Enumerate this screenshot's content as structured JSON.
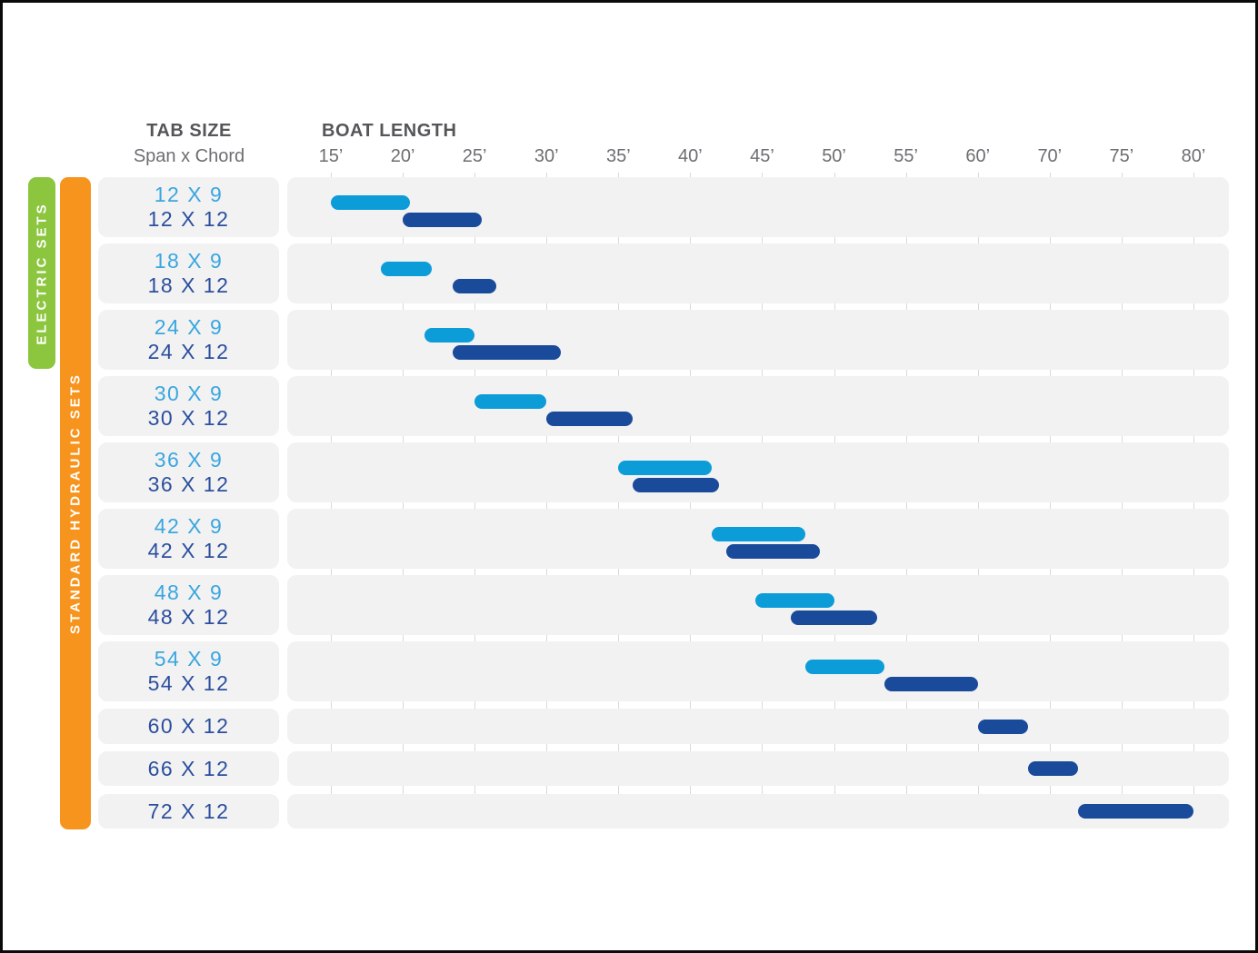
{
  "header": {
    "tab_size_title": "TAB SIZE",
    "tab_size_subtitle": "Span x Chord",
    "boat_length_title": "BOAT LENGTH"
  },
  "side_labels": {
    "electric": "ELECTRIC SETS",
    "hydraulic": "STANDARD HYDRAULIC SETS"
  },
  "colors": {
    "electric_green": "#8cc63f",
    "hydraulic_orange": "#f7941e",
    "bar_light_blue": "#0c9cd8",
    "bar_dark_blue": "#1a4b9b",
    "label_light_blue": "#3aa6df",
    "label_dark_blue": "#2b4f9d",
    "row_band_gray": "#f2f2f3",
    "gridline_gray": "#d9d9db",
    "axis_text_gray": "#6d6e71",
    "header_text_gray": "#545659"
  },
  "chart_data": {
    "type": "bar",
    "subtype": "horizontal-range-gantt",
    "title": "",
    "xlabel": "BOAT LENGTH",
    "ylabel": "TAB SIZE (Span x Chord)",
    "x_axis": {
      "tick_labels": [
        "15’",
        "20’",
        "25’",
        "30’",
        "35’",
        "40’",
        "45’",
        "50’",
        "55’",
        "60’",
        "70’",
        "75’",
        "80’"
      ],
      "tick_values_feet": [
        15,
        20,
        25,
        30,
        35,
        40,
        45,
        50,
        55,
        60,
        70,
        75,
        80
      ],
      "note_scale": "even tick spacing; 65' is skipped between 60' and 70'",
      "grid": "vertical gridlines at each tick"
    },
    "series_meaning": {
      "light": "tabs with 9-inch chord",
      "dark": "tabs with 12-inch chord"
    },
    "rows": [
      {
        "labels": [
          {
            "text": "12 X 9",
            "series": "light"
          },
          {
            "text": "12 X 12",
            "series": "dark"
          }
        ],
        "bars": [
          {
            "series": "light",
            "start_ft": 15,
            "end_ft": 20.5
          },
          {
            "series": "dark",
            "start_ft": 20,
            "end_ft": 25.5
          }
        ]
      },
      {
        "labels": [
          {
            "text": "18 X 9",
            "series": "light"
          },
          {
            "text": "18 X 12",
            "series": "dark"
          }
        ],
        "bars": [
          {
            "series": "light",
            "start_ft": 18.5,
            "end_ft": 22
          },
          {
            "series": "dark",
            "start_ft": 23.5,
            "end_ft": 26.5
          }
        ]
      },
      {
        "labels": [
          {
            "text": "24 X 9",
            "series": "light"
          },
          {
            "text": "24 X 12",
            "series": "dark"
          }
        ],
        "bars": [
          {
            "series": "light",
            "start_ft": 21.5,
            "end_ft": 25
          },
          {
            "series": "dark",
            "start_ft": 23.5,
            "end_ft": 31
          }
        ]
      },
      {
        "labels": [
          {
            "text": "30 X 9",
            "series": "light"
          },
          {
            "text": "30 X 12",
            "series": "dark"
          }
        ],
        "bars": [
          {
            "series": "light",
            "start_ft": 25,
            "end_ft": 30
          },
          {
            "series": "dark",
            "start_ft": 30,
            "end_ft": 36
          }
        ]
      },
      {
        "labels": [
          {
            "text": "36 X 9",
            "series": "light"
          },
          {
            "text": "36 X 12",
            "series": "dark"
          }
        ],
        "bars": [
          {
            "series": "light",
            "start_ft": 35,
            "end_ft": 41.5
          },
          {
            "series": "dark",
            "start_ft": 36,
            "end_ft": 42
          }
        ]
      },
      {
        "labels": [
          {
            "text": "42 X 9",
            "series": "light"
          },
          {
            "text": "42 X 12",
            "series": "dark"
          }
        ],
        "bars": [
          {
            "series": "light",
            "start_ft": 41.5,
            "end_ft": 48
          },
          {
            "series": "dark",
            "start_ft": 42.5,
            "end_ft": 49
          }
        ]
      },
      {
        "labels": [
          {
            "text": "48 X 9",
            "series": "light"
          },
          {
            "text": "48 X 12",
            "series": "dark"
          }
        ],
        "bars": [
          {
            "series": "light",
            "start_ft": 44.5,
            "end_ft": 50
          },
          {
            "series": "dark",
            "start_ft": 47,
            "end_ft": 53
          }
        ]
      },
      {
        "labels": [
          {
            "text": "54 X 9",
            "series": "light"
          },
          {
            "text": "54 X 12",
            "series": "dark"
          }
        ],
        "bars": [
          {
            "series": "light",
            "start_ft": 48,
            "end_ft": 53.5
          },
          {
            "series": "dark",
            "start_ft": 53.5,
            "end_ft": 60
          }
        ]
      },
      {
        "labels": [
          {
            "text": "60 X 12",
            "series": "dark"
          }
        ],
        "bars": [
          {
            "series": "dark",
            "start_ft": 60,
            "end_ft": 67
          }
        ]
      },
      {
        "labels": [
          {
            "text": "66 X 12",
            "series": "dark"
          }
        ],
        "bars": [
          {
            "series": "dark",
            "start_ft": 67,
            "end_ft": 72
          }
        ]
      },
      {
        "labels": [
          {
            "text": "72 X 12",
            "series": "dark"
          }
        ],
        "bars": [
          {
            "series": "dark",
            "start_ft": 72,
            "end_ft": 80
          }
        ]
      }
    ]
  }
}
